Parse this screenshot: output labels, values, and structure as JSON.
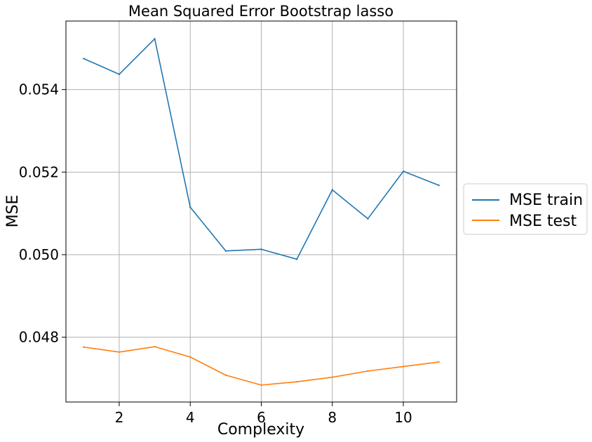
{
  "chart_data": {
    "type": "line",
    "title": "Mean Squared Error Bootstrap lasso",
    "xlabel": "Complexity",
    "ylabel": "MSE",
    "x": [
      1,
      2,
      3,
      4,
      5,
      6,
      7,
      8,
      9,
      10,
      11
    ],
    "series": [
      {
        "name": "MSE train",
        "color": "#1f77b4",
        "values": [
          0.05475,
          0.05437,
          0.05523,
          0.05115,
          0.05009,
          0.05013,
          0.04989,
          0.05157,
          0.05087,
          0.05202,
          0.05168
        ]
      },
      {
        "name": "MSE test",
        "color": "#ff7f0e",
        "values": [
          0.04776,
          0.04764,
          0.04777,
          0.04752,
          0.04708,
          0.04684,
          0.04692,
          0.04703,
          0.04718,
          0.04729,
          0.0474
        ]
      }
    ],
    "xticks": [
      2,
      4,
      6,
      8,
      10
    ],
    "xtick_labels": [
      "2",
      "4",
      "6",
      "8",
      "10"
    ],
    "yticks": [
      0.048,
      0.05,
      0.052,
      0.054
    ],
    "ytick_labels": [
      "0.048",
      "0.050",
      "0.052",
      "0.054"
    ],
    "xlim": [
      0.5,
      11.5
    ],
    "ylim": [
      0.04643,
      0.05566
    ],
    "grid": true,
    "legend_position": "right-outside"
  }
}
